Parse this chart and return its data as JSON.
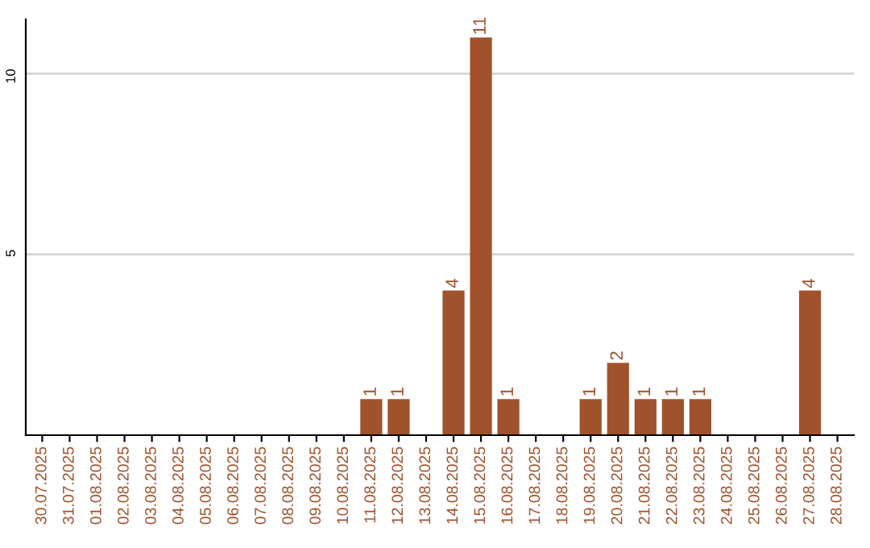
{
  "chart_data": {
    "type": "bar",
    "categories": [
      "30.07.2025",
      "31.07.2025",
      "01.08.2025",
      "02.08.2025",
      "03.08.2025",
      "04.08.2025",
      "05.08.2025",
      "06.08.2025",
      "07.08.2025",
      "08.08.2025",
      "09.08.2025",
      "10.08.2025",
      "11.08.2025",
      "12.08.2025",
      "13.08.2025",
      "14.08.2025",
      "15.08.2025",
      "16.08.2025",
      "17.08.2025",
      "18.08.2025",
      "19.08.2025",
      "20.08.2025",
      "21.08.2025",
      "22.08.2025",
      "23.08.2025",
      "24.08.2025",
      "25.08.2025",
      "26.08.2025",
      "27.08.2025",
      "28.08.2025"
    ],
    "values": [
      0,
      0,
      0,
      0,
      0,
      0,
      0,
      0,
      0,
      0,
      0,
      0,
      1,
      1,
      0,
      4,
      11,
      1,
      0,
      0,
      1,
      2,
      1,
      1,
      1,
      0,
      0,
      0,
      4,
      0
    ],
    "value_labels": [
      null,
      null,
      null,
      null,
      null,
      null,
      null,
      null,
      null,
      null,
      null,
      null,
      "1",
      "1",
      null,
      "4",
      "11",
      "1",
      null,
      null,
      "1",
      "2",
      "1",
      "1",
      "1",
      null,
      null,
      null,
      "4",
      null
    ],
    "color": "#a0522d",
    "ylim": [
      0,
      11.5
    ],
    "yticks": [
      5,
      10
    ],
    "grid": "y"
  }
}
